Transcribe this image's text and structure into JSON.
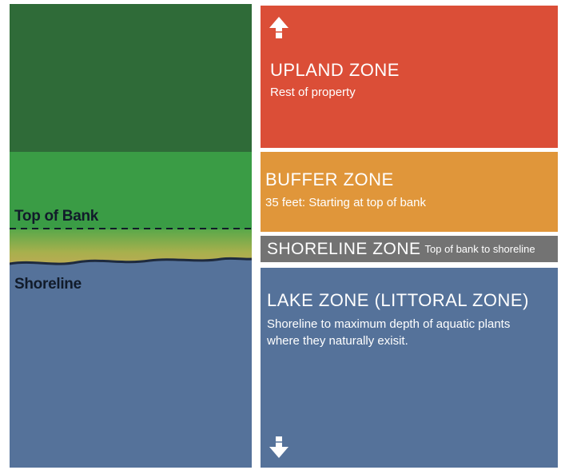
{
  "left": {
    "top_of_bank_label": "Top of Bank",
    "shoreline_label": "Shoreline"
  },
  "zones": {
    "upland": {
      "title": "UPLAND ZONE",
      "desc": "Rest of property",
      "color": "#db4e37"
    },
    "buffer": {
      "title": "BUFFER ZONE",
      "desc": "35 feet: Starting at top of bank",
      "color": "#e0963a"
    },
    "shoreline": {
      "title": "SHORELINE ZONE",
      "desc": "Top of bank to shoreline",
      "color": "#737373"
    },
    "lake": {
      "title": "LAKE ZONE (LITTORAL ZONE)",
      "desc": "Shoreline to maximum depth of aquatic plants where they naturally exisit.",
      "color": "#55729a"
    }
  },
  "colors": {
    "upland_forest": "#2f6b38",
    "buffer_grass": "#3a9c45",
    "shore_sand": "#b9b04e",
    "lake_water": "#55729a"
  },
  "icons": {
    "up": "arrow-up-icon",
    "down": "arrow-down-icon"
  }
}
